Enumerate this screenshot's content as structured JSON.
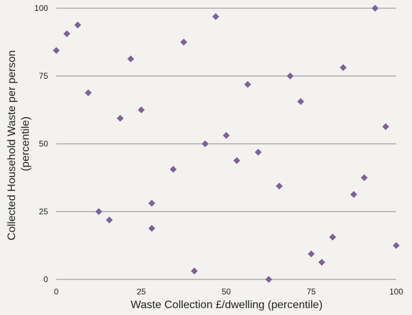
{
  "chart_data": {
    "type": "scatter",
    "title": "",
    "xlabel": "Waste Collection £/dwelling (percentile)",
    "ylabel_lines": [
      "Collected Household Waste per person",
      "(percentile)"
    ],
    "xlim": [
      0,
      100
    ],
    "ylim": [
      0,
      100
    ],
    "x_ticks": [
      "0",
      "25",
      "50",
      "75",
      "100"
    ],
    "y_ticks": [
      "0",
      "25",
      "50",
      "75",
      "100"
    ],
    "grid": "horizontal",
    "legend": "none",
    "marker_color": "#7b629c",
    "points": [
      {
        "x": 0,
        "y": 84.4
      },
      {
        "x": 3.1,
        "y": 90.6
      },
      {
        "x": 6.3,
        "y": 93.8
      },
      {
        "x": 9.4,
        "y": 68.8
      },
      {
        "x": 12.5,
        "y": 25.0
      },
      {
        "x": 15.6,
        "y": 21.9
      },
      {
        "x": 18.8,
        "y": 59.4
      },
      {
        "x": 21.9,
        "y": 81.3
      },
      {
        "x": 25.0,
        "y": 62.5
      },
      {
        "x": 28.1,
        "y": 28.1
      },
      {
        "x": 28.1,
        "y": 18.8
      },
      {
        "x": 34.4,
        "y": 40.6
      },
      {
        "x": 37.5,
        "y": 87.5
      },
      {
        "x": 40.6,
        "y": 3.1
      },
      {
        "x": 43.8,
        "y": 50.0
      },
      {
        "x": 46.9,
        "y": 96.9
      },
      {
        "x": 50.0,
        "y": 53.1
      },
      {
        "x": 53.1,
        "y": 43.8
      },
      {
        "x": 56.3,
        "y": 71.9
      },
      {
        "x": 59.4,
        "y": 46.9
      },
      {
        "x": 62.5,
        "y": 0
      },
      {
        "x": 65.6,
        "y": 34.4
      },
      {
        "x": 68.8,
        "y": 75.0
      },
      {
        "x": 71.9,
        "y": 65.6
      },
      {
        "x": 75.0,
        "y": 9.4
      },
      {
        "x": 78.1,
        "y": 6.3
      },
      {
        "x": 81.3,
        "y": 15.6
      },
      {
        "x": 84.4,
        "y": 78.1
      },
      {
        "x": 87.5,
        "y": 31.3
      },
      {
        "x": 90.6,
        "y": 37.5
      },
      {
        "x": 93.8,
        "y": 100
      },
      {
        "x": 96.9,
        "y": 56.3
      },
      {
        "x": 100,
        "y": 12.5
      }
    ]
  }
}
